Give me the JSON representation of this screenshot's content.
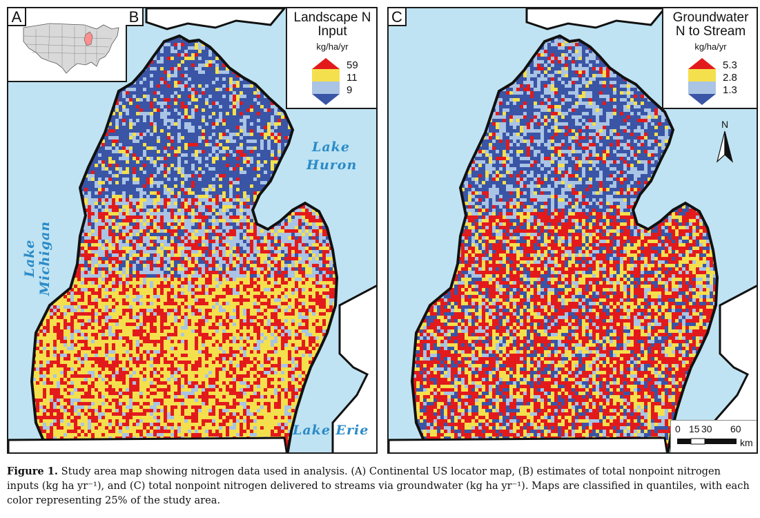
{
  "inset": {
    "letter": "A"
  },
  "panel_b": {
    "letter": "B",
    "legend": {
      "title_line1": "Landscape N",
      "title_line2": "Input",
      "unit": "kg/ha/yr",
      "values": [
        "59",
        "11",
        "9"
      ]
    },
    "lakes": {
      "michigan": "Lake Michigan",
      "huron_line1": "Lake",
      "huron_line2": "Huron",
      "erie": "Lake Erie"
    }
  },
  "panel_c": {
    "letter": "C",
    "legend": {
      "title_line1": "Groundwater",
      "title_line2": "N to Stream",
      "unit": "kg/ha/yr",
      "values": [
        "5.3",
        "2.8",
        "1.3"
      ]
    },
    "north_label": "N",
    "scale": {
      "ticks": [
        "0",
        "15",
        "30",
        "60"
      ],
      "unit": "km"
    }
  },
  "colors": {
    "water": "#bfe3f2",
    "class_high": "#e31a1c",
    "class_mid_high": "#f4e04d",
    "class_mid_low": "#a9c4e4",
    "class_low": "#3a54a6"
  },
  "caption": {
    "label": "Figure 1.",
    "text": " Study area map showing nitrogen data used in analysis. (A) Continental US locator map, (B) estimates of total nonpoint nitrogen inputs (kg ha yr⁻¹), and (C) total nonpoint nitrogen delivered to streams via groundwater (kg ha yr⁻¹). Maps are classified in quantiles, with each color representing 25% of the study area."
  }
}
